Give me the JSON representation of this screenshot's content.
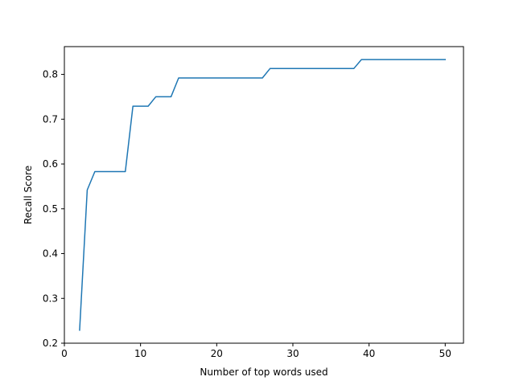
{
  "chart_data": {
    "type": "line",
    "title": "",
    "xlabel": "Number of top words used",
    "ylabel": "Recall Score",
    "xlim": [
      0,
      52.4
    ],
    "ylim": [
      0.2,
      0.862
    ],
    "xticks": [
      0,
      10,
      20,
      30,
      40,
      50
    ],
    "yticks": [
      0.2,
      0.3,
      0.4,
      0.5,
      0.6,
      0.7,
      0.8
    ],
    "x_tick_labels": [
      "0",
      "10",
      "20",
      "30",
      "40",
      "50"
    ],
    "y_tick_labels": [
      "0.2",
      "0.3",
      "0.4",
      "0.5",
      "0.6",
      "0.7",
      "0.8"
    ],
    "grid": false,
    "legend": false,
    "series": [
      {
        "color": "#1f77b4",
        "x": [
          2,
          3,
          4,
          5,
          6,
          7,
          8,
          9,
          10,
          11,
          12,
          13,
          14,
          15,
          16,
          17,
          18,
          19,
          20,
          21,
          22,
          23,
          24,
          25,
          26,
          27,
          28,
          29,
          30,
          31,
          32,
          33,
          34,
          35,
          36,
          37,
          38,
          39,
          40,
          41,
          42,
          43,
          44,
          45,
          46,
          47,
          48,
          49,
          50
        ],
        "y": [
          0.229,
          0.542,
          0.583,
          0.583,
          0.583,
          0.583,
          0.583,
          0.729,
          0.729,
          0.729,
          0.75,
          0.75,
          0.75,
          0.792,
          0.792,
          0.792,
          0.792,
          0.792,
          0.792,
          0.792,
          0.792,
          0.792,
          0.792,
          0.792,
          0.792,
          0.813,
          0.813,
          0.813,
          0.813,
          0.813,
          0.813,
          0.813,
          0.813,
          0.813,
          0.813,
          0.813,
          0.813,
          0.833,
          0.833,
          0.833,
          0.833,
          0.833,
          0.833,
          0.833,
          0.833,
          0.833,
          0.833,
          0.833,
          0.833
        ]
      }
    ]
  }
}
